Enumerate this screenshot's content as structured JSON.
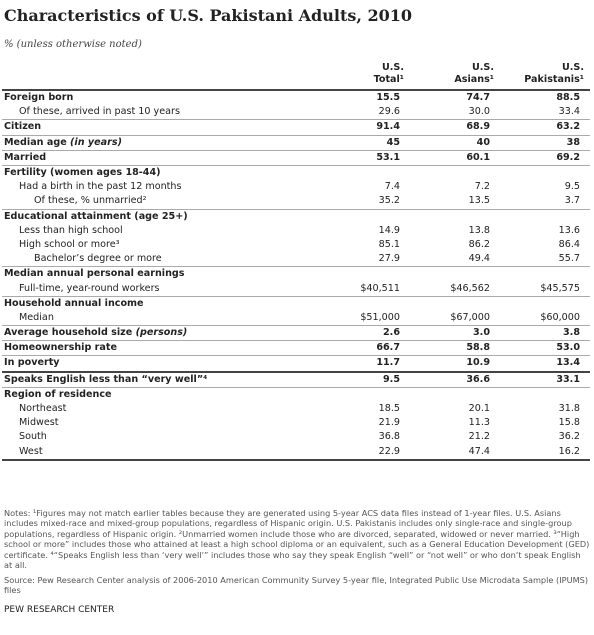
{
  "title": "Characteristics of U.S. Pakistani Adults, 2010",
  "subtitle": "% (unless otherwise noted)",
  "table": {
    "columns": [
      [
        "U.S.",
        "Total¹"
      ],
      [
        "U.S.",
        "Asians¹"
      ],
      [
        "U.S.",
        "Pakistanis¹"
      ]
    ],
    "rows": [
      {
        "label": "Foreign born",
        "bold": true,
        "indent": 0,
        "values": [
          "15.5",
          "74.7",
          "88.5"
        ]
      },
      {
        "label": "Of these, arrived in past 10 years",
        "bold": false,
        "indent": 1,
        "values": [
          "29.6",
          "30.0",
          "33.4"
        ]
      },
      {
        "label": "Citizen",
        "bold": true,
        "indent": 0,
        "values": [
          "91.4",
          "68.9",
          "63.2"
        ]
      },
      {
        "label": "Median age",
        "label_em": "(in years)",
        "bold": true,
        "indent": 0,
        "values": [
          "45",
          "40",
          "38"
        ]
      },
      {
        "label": "Married",
        "bold": true,
        "indent": 0,
        "values": [
          "53.1",
          "60.1",
          "69.2"
        ]
      },
      {
        "label": "Fertility (women ages 18-44)",
        "bold": true,
        "indent": 0,
        "values": []
      },
      {
        "label": "Had a birth in the past 12 months",
        "bold": false,
        "indent": 1,
        "values": [
          "7.4",
          "7.2",
          "9.5"
        ]
      },
      {
        "label": "Of these, % unmarried²",
        "bold": false,
        "indent": 2,
        "values": [
          "35.2",
          "13.5",
          "3.7"
        ]
      },
      {
        "label": "Educational attainment (age 25+)",
        "bold": true,
        "indent": 0,
        "values": []
      },
      {
        "label": "Less than high school",
        "bold": false,
        "indent": 1,
        "values": [
          "14.9",
          "13.8",
          "13.6"
        ]
      },
      {
        "label": "High school or more³",
        "bold": false,
        "indent": 1,
        "values": [
          "85.1",
          "86.2",
          "86.4"
        ]
      },
      {
        "label": "Bachelor’s degree or more",
        "bold": false,
        "indent": 2,
        "values": [
          "27.9",
          "49.4",
          "55.7"
        ]
      },
      {
        "label": "Median annual personal earnings",
        "bold": true,
        "indent": 0,
        "values": []
      },
      {
        "label": "Full-time, year-round workers",
        "bold": false,
        "indent": 1,
        "values": [
          "$40,511",
          "$46,562",
          "$45,575"
        ]
      },
      {
        "label": "Household annual income",
        "bold": true,
        "indent": 0,
        "values": []
      },
      {
        "label": "Median",
        "bold": false,
        "indent": 1,
        "values": [
          "$51,000",
          "$67,000",
          "$60,000"
        ]
      },
      {
        "label": "Average household size",
        "label_em": "(persons)",
        "bold": true,
        "indent": 0,
        "values": [
          "2.6",
          "3.0",
          "3.8"
        ]
      },
      {
        "label": "Homeownership rate",
        "bold": true,
        "indent": 0,
        "values": [
          "66.7",
          "58.8",
          "53.0"
        ]
      },
      {
        "label": "In poverty",
        "bold": true,
        "indent": 0,
        "values": [
          "11.7",
          "10.9",
          "13.4"
        ]
      },
      {
        "label": "Speaks English less than “very well”⁴",
        "bold": true,
        "indent": 0,
        "values": [
          "9.5",
          "36.6",
          "33.1"
        ]
      },
      {
        "label": "Region of residence",
        "bold": true,
        "indent": 0,
        "values": []
      },
      {
        "label": "Northeast",
        "bold": false,
        "indent": 1,
        "values": [
          "18.5",
          "20.1",
          "31.8"
        ]
      },
      {
        "label": "Midwest",
        "bold": false,
        "indent": 1,
        "values": [
          "21.9",
          "11.3",
          "15.8"
        ]
      },
      {
        "label": "South",
        "bold": false,
        "indent": 1,
        "values": [
          "36.8",
          "21.2",
          "36.2"
        ]
      },
      {
        "label": "West",
        "bold": false,
        "indent": 1,
        "values": [
          "22.9",
          "47.4",
          "16.2"
        ]
      }
    ]
  },
  "notes": "Notes: ¹Figures may not match earlier tables because they are generated using 5-year ACS data files instead of 1-year files. U.S. Asians includes mixed-race and mixed-group populations, regardless of Hispanic origin. U.S. Pakistanis includes only single-race and single-group populations, regardless of Hispanic origin. ²Unmarried women include those who are divorced, separated, widowed or never married. ³“High school or more” includes those who attained at least a high school diploma or an equivalent, such as a General Education Development (GED) certificate. ⁴“Speaks English less than ‘very well’” includes those who say they speak English “well” or “not well” or who don’t speak English at all.",
  "source": "Source: Pew Research Center analysis of 2006-2010 American Community Survey 5-year file, Integrated Public Use Microdata Sample (IPUMS) files",
  "brand": "PEW RESEARCH CENTER"
}
